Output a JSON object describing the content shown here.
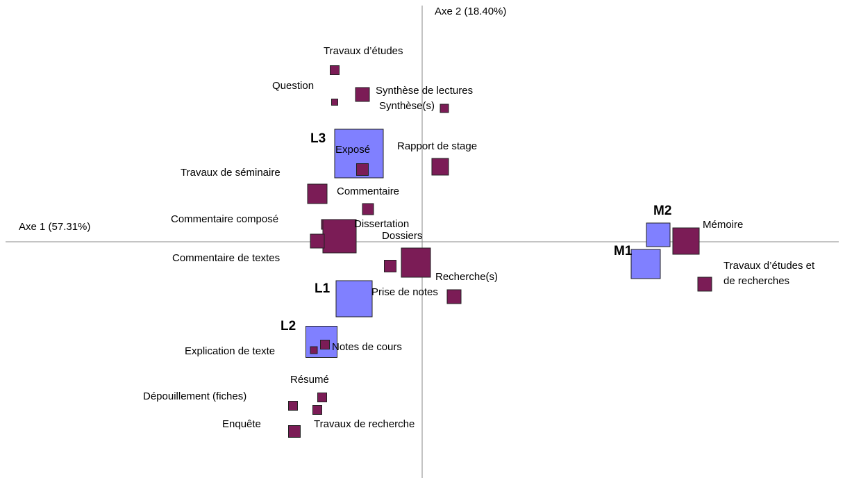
{
  "chart_data": {
    "type": "scatter",
    "x_label": "Axe 1 (57.31%)",
    "y_label": "Axe 2 (18.40%)",
    "xlim": [
      -6,
      6
    ],
    "ylim": [
      -3.4,
      3.4
    ],
    "series": [
      {
        "color": "#8080ff",
        "bold": true,
        "points": [
          {
            "label": "L3",
            "x": -0.91,
            "y": 1.27,
            "size": 70
          },
          {
            "label": "L1",
            "x": -0.98,
            "y": -0.82,
            "size": 52
          },
          {
            "label": "L2",
            "x": -1.45,
            "y": -1.44,
            "size": 45
          },
          {
            "label": "M1",
            "x": 3.22,
            "y": -0.32,
            "size": 42
          },
          {
            "label": "M2",
            "x": 3.4,
            "y": 0.1,
            "size": 34
          }
        ]
      },
      {
        "color": "#7b1c56",
        "bold": false,
        "points": [
          {
            "label": "Travaux d’études",
            "x": -1.26,
            "y": 2.47,
            "size": 13
          },
          {
            "label": "Question",
            "x": -1.26,
            "y": 2.01,
            "size": 9
          },
          {
            "label": "Synthèse de lectures",
            "x": -0.86,
            "y": 2.12,
            "size": 20
          },
          {
            "label": "Synthèse(s)",
            "x": 0.32,
            "y": 1.92,
            "size": 12
          },
          {
            "label": "Rapport de stage",
            "x": 0.26,
            "y": 1.08,
            "size": 24
          },
          {
            "label": "Exposé",
            "x": -0.86,
            "y": 1.04,
            "size": 17
          },
          {
            "label": "Travaux de séminaire",
            "x": -1.51,
            "y": 0.69,
            "size": 28
          },
          {
            "label": "Commentaire",
            "x": -0.78,
            "y": 0.47,
            "size": 16
          },
          {
            "label": "Commentaire composé",
            "x": -1.38,
            "y": 0.25,
            "size": 14
          },
          {
            "label": "Dissertation",
            "x": -1.19,
            "y": 0.08,
            "size": 48
          },
          {
            "label": "Commentaire de textes",
            "x": -1.51,
            "y": 0.01,
            "size": 20
          },
          {
            "label": "Dossiers",
            "x": -0.09,
            "y": -0.3,
            "size": 42
          },
          {
            "label": "Recherche(s)",
            "x": -0.46,
            "y": -0.35,
            "size": 17
          },
          {
            "label": "Prise de notes",
            "x": 0.46,
            "y": -0.79,
            "size": 20
          },
          {
            "label": "Notes de cours",
            "x": -1.4,
            "y": -1.48,
            "size": 13
          },
          {
            "label": "Explication de texte",
            "x": -1.56,
            "y": -1.56,
            "size": 10
          },
          {
            "label": "Résumé",
            "x": -1.44,
            "y": -2.24,
            "size": 13
          },
          {
            "label": "Dépouillement (fiches)",
            "x": -1.86,
            "y": -2.36,
            "size": 13
          },
          {
            "label": "Travaux de recherche",
            "x": -1.51,
            "y": -2.42,
            "size": 13
          },
          {
            "label": "Enquête",
            "x": -1.84,
            "y": -2.73,
            "size": 17
          },
          {
            "label": "Mémoire",
            "x": 3.8,
            "y": 0.01,
            "size": 38
          },
          {
            "label": [
              "Travaux d’études et",
              "de recherches"
            ],
            "x": 4.07,
            "y": -0.61,
            "size": 20
          }
        ]
      }
    ]
  }
}
